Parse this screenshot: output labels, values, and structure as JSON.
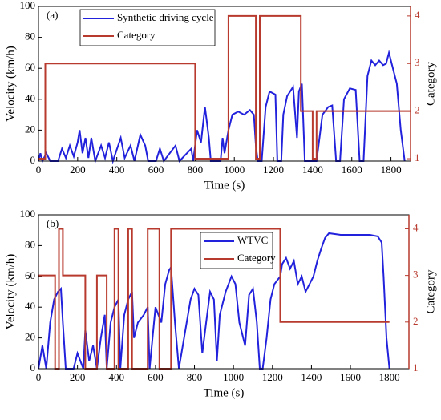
{
  "chart_data": [
    {
      "type": "line",
      "annotation": "(a)",
      "xlabel": "Time (s)",
      "ylabel": "Velocity (km/h)",
      "y2label": "Category",
      "xlim": [
        0,
        1900
      ],
      "xticks": [
        0,
        200,
        400,
        600,
        800,
        1000,
        1200,
        1400,
        1600,
        1800
      ],
      "ylim": [
        0,
        100
      ],
      "yticks": [
        0,
        20,
        40,
        60,
        80,
        100
      ],
      "y2lim": [
        0.95,
        4.2
      ],
      "y2ticks": [
        1,
        2,
        3,
        4
      ],
      "series": [
        {
          "name": "Synthetic driving cycle",
          "color": "#2222dd",
          "x": [
            0,
            10,
            20,
            40,
            60,
            100,
            120,
            140,
            160,
            180,
            200,
            210,
            225,
            240,
            255,
            270,
            290,
            320,
            340,
            360,
            380,
            420,
            440,
            470,
            490,
            520,
            545,
            560,
            600,
            620,
            640,
            700,
            720,
            780,
            790,
            810,
            830,
            850,
            870,
            880,
            930,
            940,
            950,
            970,
            990,
            1020,
            1050,
            1080,
            1100,
            1110,
            1120,
            1140,
            1160,
            1180,
            1210,
            1220,
            1240,
            1250,
            1270,
            1300,
            1320,
            1330,
            1345,
            1360,
            1420,
            1450,
            1480,
            1500,
            1520,
            1540,
            1560,
            1590,
            1620,
            1640,
            1660,
            1680,
            1700,
            1720,
            1740,
            1760,
            1775,
            1790,
            1810,
            1830,
            1850,
            1870
          ],
          "values": [
            0,
            5,
            0,
            5,
            0,
            0,
            8,
            2,
            10,
            3,
            12,
            20,
            5,
            15,
            2,
            15,
            0,
            10,
            2,
            12,
            0,
            15,
            2,
            10,
            0,
            17,
            10,
            0,
            0,
            8,
            0,
            10,
            0,
            8,
            0,
            20,
            12,
            35,
            15,
            0,
            0,
            15,
            5,
            20,
            30,
            32,
            30,
            33,
            30,
            10,
            0,
            0,
            35,
            45,
            43,
            0,
            0,
            30,
            42,
            48,
            15,
            45,
            50,
            0,
            0,
            30,
            35,
            36,
            0,
            0,
            40,
            47,
            46,
            0,
            0,
            55,
            65,
            62,
            65,
            62,
            63,
            70,
            60,
            50,
            20,
            0
          ]
        },
        {
          "name": "Category",
          "color": "#b83a2e",
          "axis": "y2",
          "x": [
            0,
            35,
            35,
            800,
            800,
            970,
            970,
            1110,
            1110,
            1130,
            1130,
            1340,
            1340,
            1400,
            1400,
            1420,
            1420,
            1900
          ],
          "values": [
            1,
            1,
            3,
            3,
            1,
            1,
            4,
            4,
            1,
            1,
            4,
            4,
            2,
            2,
            1,
            1,
            2,
            2
          ]
        }
      ]
    },
    {
      "type": "line",
      "annotation": "(b)",
      "xlabel": "Time (s)",
      "ylabel": "Velocity (km/h)",
      "y2label": "Category",
      "xlim": [
        0,
        1900
      ],
      "xticks": [
        0,
        200,
        400,
        600,
        800,
        1000,
        1200,
        1400,
        1600,
        1800
      ],
      "ylim": [
        0,
        100
      ],
      "yticks": [
        0,
        20,
        40,
        60,
        80,
        100
      ],
      "y2lim": [
        1,
        4.3
      ],
      "y2ticks": [
        1,
        2,
        3,
        4
      ],
      "series": [
        {
          "name": "WTVC",
          "color": "#2222dd",
          "x": [
            0,
            20,
            40,
            60,
            80,
            100,
            115,
            125,
            140,
            180,
            200,
            230,
            240,
            260,
            280,
            300,
            320,
            340,
            350,
            370,
            390,
            410,
            420,
            440,
            460,
            480,
            490,
            510,
            540,
            560,
            570,
            600,
            630,
            650,
            670,
            680,
            700,
            720,
            760,
            780,
            800,
            820,
            840,
            860,
            880,
            900,
            915,
            930,
            960,
            990,
            1010,
            1030,
            1050,
            1060,
            1080,
            1100,
            1120,
            1135,
            1150,
            1170,
            1190,
            1210,
            1240,
            1250,
            1270,
            1290,
            1310,
            1330,
            1350,
            1370,
            1390,
            1410,
            1430,
            1450,
            1470,
            1490,
            1550,
            1600,
            1650,
            1700,
            1740,
            1760,
            1770,
            1785,
            1800
          ],
          "values": [
            0,
            15,
            0,
            30,
            45,
            50,
            52,
            30,
            0,
            0,
            10,
            0,
            25,
            5,
            15,
            0,
            20,
            35,
            0,
            30,
            40,
            45,
            0,
            35,
            45,
            50,
            20,
            30,
            35,
            40,
            0,
            40,
            30,
            55,
            64,
            66,
            30,
            0,
            30,
            45,
            52,
            48,
            10,
            30,
            50,
            45,
            5,
            35,
            50,
            60,
            55,
            30,
            20,
            15,
            48,
            52,
            30,
            0,
            0,
            20,
            45,
            55,
            60,
            68,
            72,
            65,
            70,
            55,
            60,
            50,
            55,
            60,
            70,
            78,
            85,
            88,
            87,
            87,
            87,
            87,
            86,
            82,
            60,
            20,
            0
          ]
        },
        {
          "name": "Category",
          "color": "#b83a2e",
          "axis": "y2",
          "x": [
            0,
            85,
            85,
            105,
            105,
            125,
            125,
            240,
            240,
            300,
            300,
            350,
            350,
            390,
            390,
            410,
            410,
            460,
            460,
            480,
            480,
            560,
            560,
            620,
            620,
            680,
            680,
            1240,
            1240,
            1800
          ],
          "values": [
            3,
            3,
            1,
            1,
            4,
            4,
            3,
            3,
            1,
            1,
            3,
            3,
            1,
            1,
            4,
            4,
            1,
            1,
            4,
            4,
            1,
            1,
            4,
            4,
            1,
            1,
            4,
            4,
            2,
            2
          ]
        }
      ]
    }
  ]
}
